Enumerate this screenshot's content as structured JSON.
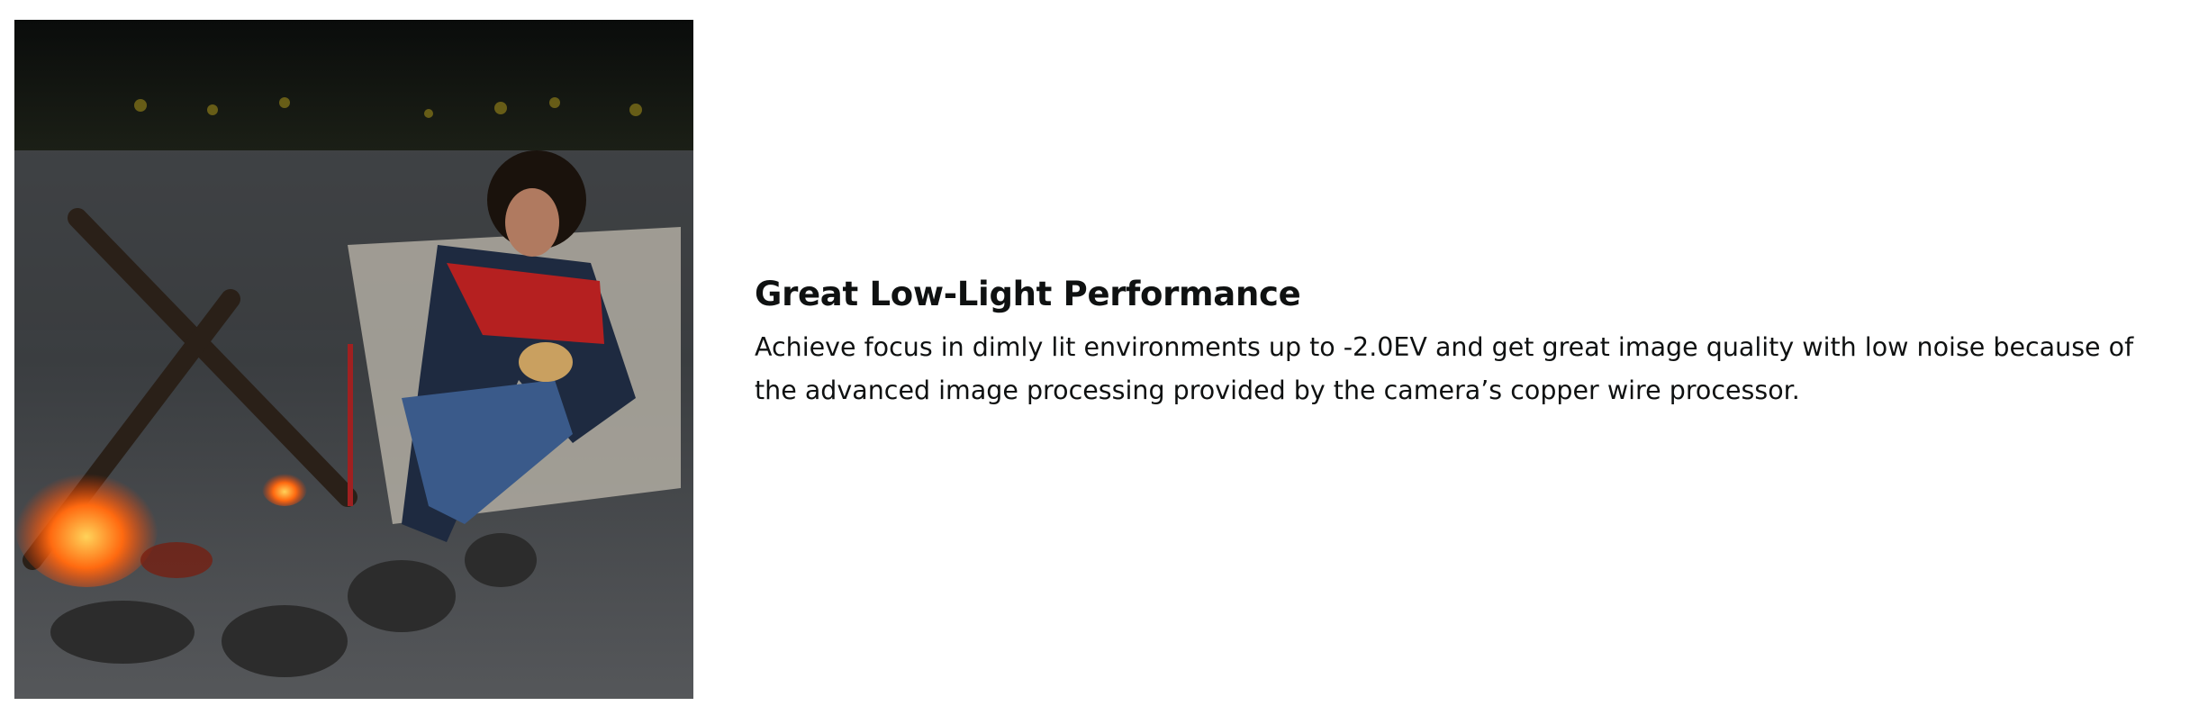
{
  "feature": {
    "image": {
      "alt": "Person relaxing in a camp chair beside a campfire at dusk",
      "icon": "photo"
    },
    "heading": "Great Low-Light Performance",
    "description": "Achieve focus in dimly lit environments up to -2.0EV and get great image quality with low noise because of the advanced image processing provided by the camera’s copper wire processor."
  }
}
